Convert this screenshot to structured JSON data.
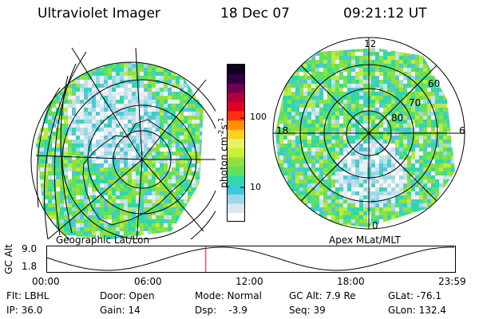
{
  "header": {
    "instrument": "Ultraviolet Imager",
    "date": "18 Dec 07",
    "time": "09:21:12 UT"
  },
  "colorbar": {
    "unit_label": "photon cm",
    "unit_sup1": "-2",
    "unit_mid": "s",
    "unit_sup2": "-1",
    "ticks": [
      "100",
      "10"
    ],
    "colors": [
      "#ffffff",
      "#d8e8f0",
      "#9ad8e8",
      "#40c8d8",
      "#30d8a8",
      "#60e060",
      "#90e040",
      "#c8f038",
      "#e8f068",
      "#ffd020",
      "#ff9000",
      "#ff3010",
      "#e00020",
      "#b00040",
      "#700050",
      "#300040",
      "#100020"
    ]
  },
  "maps": {
    "left_caption": "Geographic Lat/Lon",
    "right_caption": "Apex MLat/MLT",
    "polar_labels": {
      "top": "12",
      "left": "18",
      "right": "6",
      "bottom": "0",
      "lat60": "60",
      "lat70": "70",
      "lat80": "80"
    }
  },
  "altitude_plot": {
    "ylabel": "GC Alt",
    "yticks": [
      "9.0",
      "1.8"
    ],
    "xticks": [
      "00:00",
      "06:00",
      "12:00",
      "18:00",
      "23:59"
    ],
    "marker_time_hours": 9.353,
    "marker_color": "#ff0000"
  },
  "info": {
    "filter": "Flt: LBHL",
    "ip": "IP: 36.0",
    "door": "Door: Open",
    "gain": "Gain: 14",
    "mode": "Mode: Normal",
    "dsp": "Dsp:    -3.9",
    "gc_alt": "GC Alt: 7.9 Re",
    "seq": "Seq: 39",
    "glat": "GLat: -76.1",
    "glon": "GLon: 132.4"
  }
}
